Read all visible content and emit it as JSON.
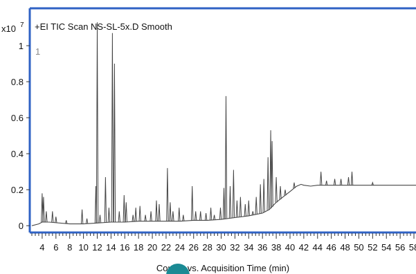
{
  "chart_data": {
    "type": "line",
    "title": "+EI TIC Scan NS-SL-5x.D  Smooth",
    "scale_label": "x10",
    "scale_exponent": "7",
    "trace_label": "1",
    "xlabel": "Counts vs. Acquisition Time (min)",
    "ylabel": "",
    "xlim": [
      2.5,
      58.3
    ],
    "ylim": [
      -0.03,
      1.2
    ],
    "x_ticks": [
      "4",
      "6",
      "8",
      "10",
      "12",
      "14",
      "16",
      "18",
      "20",
      "22",
      "24",
      "26",
      "28",
      "30",
      "32",
      "34",
      "36",
      "38",
      "40",
      "42",
      "44",
      "46",
      "48",
      "50",
      "52",
      "54",
      "56",
      "58"
    ],
    "y_ticks": [
      "0",
      "0.2",
      "0.4",
      "0.6",
      "0.8",
      "1"
    ],
    "grid": false,
    "baseline": [
      [
        2.5,
        0.0
      ],
      [
        3.5,
        0.01
      ],
      [
        4.0,
        0.02
      ],
      [
        5.0,
        0.02
      ],
      [
        8.0,
        0.01
      ],
      [
        10.0,
        0.01
      ],
      [
        12.0,
        0.015
      ],
      [
        14.0,
        0.02
      ],
      [
        16.0,
        0.02
      ],
      [
        18.0,
        0.025
      ],
      [
        20.0,
        0.025
      ],
      [
        22.0,
        0.025
      ],
      [
        24.0,
        0.025
      ],
      [
        26.0,
        0.03
      ],
      [
        28.0,
        0.03
      ],
      [
        30.0,
        0.035
      ],
      [
        32.0,
        0.045
      ],
      [
        34.0,
        0.055
      ],
      [
        36.0,
        0.07
      ],
      [
        37.0,
        0.09
      ],
      [
        38.0,
        0.13
      ],
      [
        39.0,
        0.16
      ],
      [
        40.0,
        0.19
      ],
      [
        40.8,
        0.215
      ],
      [
        41.0,
        0.22
      ],
      [
        41.6,
        0.23
      ],
      [
        42.0,
        0.225
      ],
      [
        43.0,
        0.22
      ],
      [
        44.0,
        0.225
      ],
      [
        46.0,
        0.225
      ],
      [
        48.0,
        0.225
      ],
      [
        50.0,
        0.225
      ],
      [
        52.0,
        0.225
      ],
      [
        54.0,
        0.225
      ],
      [
        56.0,
        0.225
      ],
      [
        58.3,
        0.225
      ]
    ],
    "peaks": [
      [
        4.0,
        0.18
      ],
      [
        4.2,
        0.16
      ],
      [
        4.6,
        0.08
      ],
      [
        5.5,
        0.08
      ],
      [
        6.0,
        0.05
      ],
      [
        7.5,
        0.03
      ],
      [
        9.8,
        0.09
      ],
      [
        10.5,
        0.04
      ],
      [
        11.8,
        0.22
      ],
      [
        12.0,
        1.13
      ],
      [
        12.4,
        0.06
      ],
      [
        13.2,
        0.27
      ],
      [
        13.7,
        0.1
      ],
      [
        14.2,
        1.07
      ],
      [
        14.5,
        0.9
      ],
      [
        15.2,
        0.08
      ],
      [
        15.9,
        0.17
      ],
      [
        16.2,
        0.13
      ],
      [
        17.2,
        0.06
      ],
      [
        17.6,
        0.1
      ],
      [
        18.2,
        0.11
      ],
      [
        19.0,
        0.06
      ],
      [
        19.8,
        0.08
      ],
      [
        20.6,
        0.14
      ],
      [
        21.0,
        0.12
      ],
      [
        22.2,
        0.32
      ],
      [
        22.6,
        0.13
      ],
      [
        23.0,
        0.08
      ],
      [
        23.9,
        0.1
      ],
      [
        24.5,
        0.06
      ],
      [
        25.8,
        0.22
      ],
      [
        26.3,
        0.08
      ],
      [
        27.0,
        0.08
      ],
      [
        27.8,
        0.07
      ],
      [
        28.5,
        0.1
      ],
      [
        29.0,
        0.06
      ],
      [
        29.9,
        0.1
      ],
      [
        30.4,
        0.21
      ],
      [
        30.7,
        0.72
      ],
      [
        31.3,
        0.22
      ],
      [
        31.8,
        0.31
      ],
      [
        32.3,
        0.14
      ],
      [
        32.8,
        0.16
      ],
      [
        33.5,
        0.12
      ],
      [
        34.0,
        0.14
      ],
      [
        34.6,
        0.08
      ],
      [
        35.1,
        0.16
      ],
      [
        35.7,
        0.23
      ],
      [
        36.2,
        0.26
      ],
      [
        36.8,
        0.38
      ],
      [
        37.2,
        0.53
      ],
      [
        37.4,
        0.47
      ],
      [
        38.0,
        0.27
      ],
      [
        38.6,
        0.22
      ],
      [
        39.3,
        0.2
      ],
      [
        40.6,
        0.24
      ],
      [
        44.5,
        0.3
      ],
      [
        45.3,
        0.25
      ],
      [
        46.5,
        0.26
      ],
      [
        47.4,
        0.26
      ],
      [
        48.5,
        0.27
      ],
      [
        49.0,
        0.3
      ],
      [
        52.0,
        0.24
      ]
    ]
  }
}
